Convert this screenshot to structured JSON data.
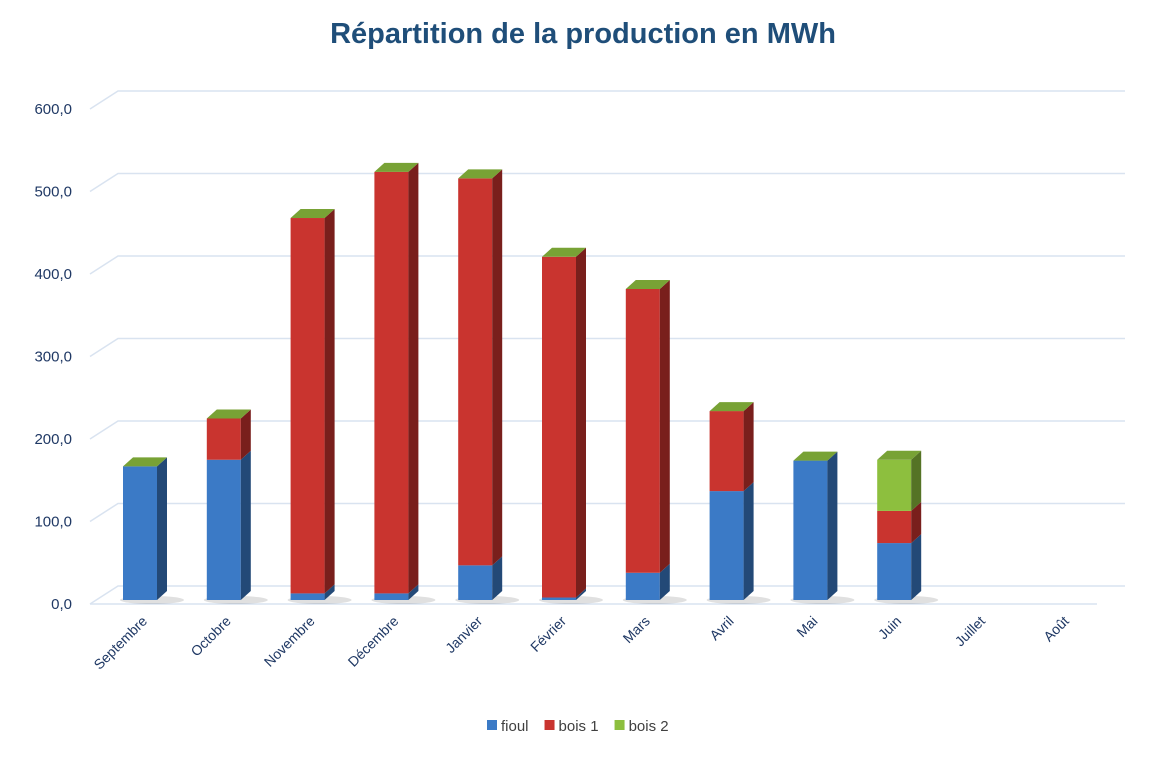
{
  "chart_data": {
    "type": "bar",
    "stacked": true,
    "style": "3d-column",
    "title": "Répartition de la production en MWh",
    "xlabel": "",
    "ylabel": "",
    "ylim": [
      0,
      600
    ],
    "yticks": [
      "0,0",
      "100,0",
      "200,0",
      "300,0",
      "400,0",
      "500,0",
      "600,0"
    ],
    "grid": true,
    "legend_position": "bottom",
    "categories": [
      "Septembre",
      "Octobre",
      "Novembre",
      "Décembre",
      "Janvier",
      "Février",
      "Mars",
      "Avril",
      "Mai",
      "Juin",
      "Juillet",
      "Août"
    ],
    "series": [
      {
        "name": "fioul",
        "color": "#3b7ac6",
        "values": [
          162,
          170,
          8,
          8,
          42,
          3,
          33,
          132,
          169,
          69,
          0,
          0
        ]
      },
      {
        "name": "bois 1",
        "color": "#c9342f",
        "values": [
          0,
          50,
          455,
          511,
          469,
          413,
          344,
          97,
          0,
          39,
          0,
          0
        ]
      },
      {
        "name": "bois 2",
        "color": "#8dbf3e",
        "values": [
          0,
          0,
          0,
          0,
          0,
          0,
          0,
          0,
          0,
          62,
          0,
          0
        ]
      }
    ]
  }
}
